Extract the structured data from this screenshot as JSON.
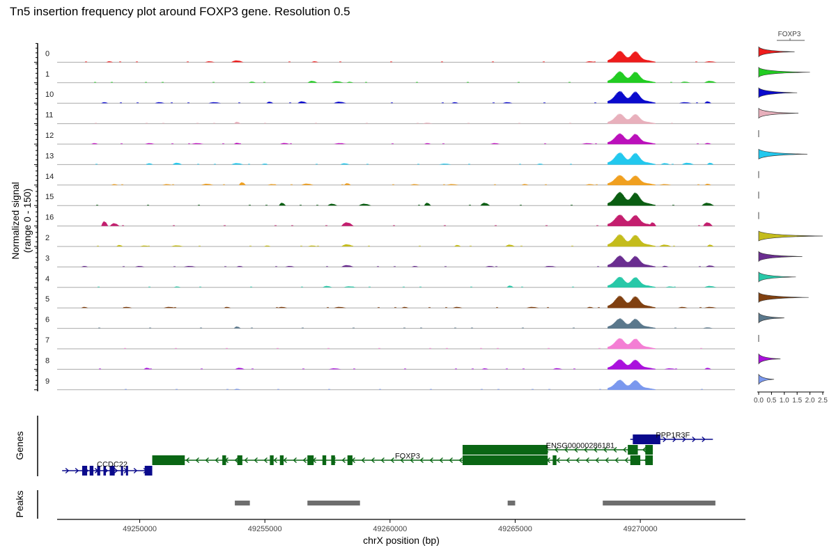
{
  "title": "Tn5 insertion frequency plot around FOXP3 gene. Resolution 0.5",
  "chart_data": {
    "type": "area",
    "title": "Tn5 insertion frequency plot around FOXP3 gene. Resolution 0.5",
    "ylabel_line1": "Normalized signal",
    "ylabel_line2": "(range 0 - 150)",
    "xlabel": "chrX position (bp)",
    "xlim": [
      49246700,
      49274200
    ],
    "xticks": [
      49250000,
      49255000,
      49260000,
      49265000,
      49270000
    ],
    "xtick_labels": [
      "49250000",
      "49255000",
      "49260000",
      "49265000",
      "49270000"
    ],
    "ylim": [
      0,
      150
    ],
    "main_peak": {
      "start": 49268700,
      "end": 49270600,
      "centers": [
        49269200,
        49269800
      ]
    },
    "tracks": [
      {
        "name": "0",
        "color": "#ee1c1c",
        "peak": 0.8,
        "bg": [
          [
            49248800,
            0.04
          ],
          [
            49252800,
            0.05
          ],
          [
            49253900,
            0.1
          ],
          [
            49257000,
            0.04
          ],
          [
            49268000,
            0.04
          ],
          [
            49272800,
            0.05
          ]
        ]
      },
      {
        "name": "1",
        "color": "#22cc22",
        "peak": 0.8,
        "bg": [
          [
            49254500,
            0.06
          ],
          [
            49256900,
            0.1
          ],
          [
            49257900,
            0.08
          ],
          [
            49258400,
            0.05
          ],
          [
            49271800,
            0.06
          ],
          [
            49272800,
            0.1
          ]
        ]
      },
      {
        "name": "10",
        "color": "#0a0acd",
        "peak": 0.85,
        "bg": [
          [
            49248600,
            0.04
          ],
          [
            49250800,
            0.05
          ],
          [
            49253000,
            0.05
          ],
          [
            49255200,
            0.08
          ],
          [
            49256500,
            0.1
          ],
          [
            49258000,
            0.08
          ],
          [
            49262600,
            0.05
          ],
          [
            49264700,
            0.04
          ],
          [
            49271800,
            0.05
          ],
          [
            49272700,
            0.1
          ]
        ]
      },
      {
        "name": "11",
        "color": "#e8b0bc",
        "peak": 0.7,
        "bg": [
          [
            49253900,
            0.1
          ],
          [
            49261500,
            0.03
          ]
        ]
      },
      {
        "name": "12",
        "color": "#bb10bb",
        "peak": 0.75,
        "bg": [
          [
            49248200,
            0.04
          ],
          [
            49250400,
            0.05
          ],
          [
            49252300,
            0.04
          ],
          [
            49253900,
            0.07
          ],
          [
            49255800,
            0.06
          ],
          [
            49258000,
            0.05
          ],
          [
            49261500,
            0.04
          ],
          [
            49264200,
            0.05
          ],
          [
            49267900,
            0.05
          ],
          [
            49272700,
            0.06
          ]
        ]
      },
      {
        "name": "13",
        "color": "#22c8ee",
        "peak": 0.85,
        "bg": [
          [
            49250400,
            0.07
          ],
          [
            49251500,
            0.1
          ],
          [
            49253900,
            0.08
          ],
          [
            49255000,
            0.05
          ],
          [
            49258200,
            0.07
          ],
          [
            49262200,
            0.05
          ],
          [
            49266000,
            0.05
          ],
          [
            49271000,
            0.08
          ],
          [
            49271900,
            0.1
          ],
          [
            49272800,
            0.1
          ]
        ]
      },
      {
        "name": "14",
        "color": "#f0a020",
        "peak": 0.7,
        "bg": [
          [
            49249000,
            0.03
          ],
          [
            49251100,
            0.05
          ],
          [
            49252700,
            0.07
          ],
          [
            49254100,
            0.15
          ],
          [
            49255300,
            0.05
          ],
          [
            49256700,
            0.08
          ],
          [
            49258300,
            0.1
          ],
          [
            49261000,
            0.05
          ],
          [
            49262500,
            0.04
          ],
          [
            49265400,
            0.06
          ],
          [
            49268000,
            0.05
          ],
          [
            49271000,
            0.05
          ],
          [
            49272700,
            0.07
          ]
        ]
      },
      {
        "name": "15",
        "color": "#0a5e12",
        "peak": 0.95,
        "bg": [
          [
            49255700,
            0.15
          ],
          [
            49257700,
            0.1
          ],
          [
            49259000,
            0.1
          ],
          [
            49261500,
            0.15
          ],
          [
            49263800,
            0.15
          ],
          [
            49272700,
            0.15
          ]
        ]
      },
      {
        "name": "16",
        "color": "#c41e6e",
        "peak": 0.8,
        "bg": [
          [
            49248600,
            0.25
          ],
          [
            49249000,
            0.15
          ],
          [
            49258300,
            0.2
          ],
          [
            49270500,
            0.2
          ],
          [
            49272700,
            0.2
          ]
        ]
      },
      {
        "name": "2",
        "color": "#c4bc1c",
        "peak": 0.85,
        "bg": [
          [
            49249200,
            0.08
          ],
          [
            49250200,
            0.05
          ],
          [
            49251500,
            0.06
          ],
          [
            49255100,
            0.05
          ],
          [
            49256900,
            0.05
          ],
          [
            49258300,
            0.12
          ],
          [
            49262700,
            0.08
          ],
          [
            49264800,
            0.1
          ],
          [
            49271000,
            0.1
          ],
          [
            49272800,
            0.1
          ]
        ]
      },
      {
        "name": "3",
        "color": "#6a2d90",
        "peak": 0.8,
        "bg": [
          [
            49247800,
            0.05
          ],
          [
            49250000,
            0.05
          ],
          [
            49252000,
            0.04
          ],
          [
            49254000,
            0.05
          ],
          [
            49256000,
            0.05
          ],
          [
            49258300,
            0.1
          ],
          [
            49261000,
            0.05
          ],
          [
            49264000,
            0.05
          ],
          [
            49266400,
            0.05
          ],
          [
            49271000,
            0.06
          ],
          [
            49272800,
            0.08
          ]
        ]
      },
      {
        "name": "4",
        "color": "#28c8a8",
        "peak": 0.75,
        "bg": [
          [
            49251500,
            0.05
          ],
          [
            49257500,
            0.08
          ],
          [
            49258400,
            0.06
          ],
          [
            49264800,
            0.1
          ],
          [
            49271200,
            0.04
          ],
          [
            49272800,
            0.08
          ]
        ]
      },
      {
        "name": "5",
        "color": "#804010",
        "peak": 0.85,
        "bg": [
          [
            49247800,
            0.03
          ],
          [
            49249500,
            0.04
          ],
          [
            49251200,
            0.03
          ],
          [
            49253500,
            0.04
          ],
          [
            49255700,
            0.04
          ],
          [
            49258000,
            0.04
          ],
          [
            49260600,
            0.03
          ],
          [
            49262700,
            0.04
          ],
          [
            49265700,
            0.03
          ],
          [
            49268000,
            0.03
          ],
          [
            49271700,
            0.04
          ],
          [
            49272800,
            0.05
          ]
        ]
      },
      {
        "name": "6",
        "color": "#5a788c",
        "peak": 0.7,
        "bg": [
          [
            49253900,
            0.1
          ],
          [
            49272700,
            0.05
          ]
        ]
      },
      {
        "name": "7",
        "color": "#f47ed4",
        "peak": 0.75,
        "bg": []
      },
      {
        "name": "8",
        "color": "#aa10dd",
        "peak": 0.7,
        "bg": [
          [
            49250300,
            0.08
          ],
          [
            49254000,
            0.08
          ],
          [
            49257800,
            0.05
          ],
          [
            49263800,
            0.05
          ],
          [
            49266700,
            0.06
          ],
          [
            49271200,
            0.04
          ],
          [
            49272700,
            0.08
          ]
        ]
      },
      {
        "name": "9",
        "color": "#7a98ee",
        "peak": 0.7,
        "bg": [
          [
            49253900,
            0.04
          ]
        ]
      }
    ],
    "violin": {
      "title": "FOXP3",
      "xlim": [
        0,
        2.5
      ],
      "xticks": [
        0,
        0.5,
        1.0,
        1.5,
        2.0,
        2.5
      ],
      "xtick_labels": [
        "0.0",
        "0.5",
        "1.0",
        "1.5",
        "2.0",
        "2.5"
      ],
      "max_values": [
        1.4,
        2.0,
        1.5,
        1.55,
        0.0,
        1.9,
        0.0,
        0.0,
        0.0,
        2.5,
        1.7,
        1.45,
        1.95,
        1.0,
        0.0,
        0.85,
        0.6
      ],
      "bulb": [
        0.05,
        0.05,
        0.08,
        0.05,
        0.0,
        0.15,
        0.0,
        0.0,
        0.0,
        0.2,
        0.05,
        0.06,
        0.06,
        0.04,
        0.0,
        0.04,
        0.03
      ]
    },
    "genes_label": "Genes",
    "peaks_label": "Peaks",
    "genes": [
      {
        "name": "CCDC22",
        "color": "#0a0a8c",
        "strand": "+",
        "start": 49246900,
        "end": 49250500,
        "row": 2,
        "exons": [
          [
            49247700,
            49247900
          ],
          [
            49248000,
            49248150
          ],
          [
            49248300,
            49248420
          ],
          [
            49248550,
            49248650
          ],
          [
            49248800,
            49249000
          ],
          [
            49249250,
            49249330
          ],
          [
            49249450,
            49249520
          ],
          [
            49250200,
            49250500
          ]
        ],
        "label_x": 49248900,
        "label_row": 1.35
      },
      {
        "name": "FOXP3",
        "color": "#0a6614",
        "strand": "-",
        "start": 49250500,
        "end": 49270500,
        "row": 1,
        "exons": [
          [
            49250500,
            49251800
          ],
          [
            49253300,
            49253450
          ],
          [
            49253900,
            49254100
          ],
          [
            49255200,
            49255350
          ],
          [
            49255600,
            49255750
          ],
          [
            49256700,
            49256950
          ],
          [
            49257300,
            49257450
          ],
          [
            49257650,
            49257800
          ],
          [
            49258300,
            49258500
          ],
          [
            49262900,
            49266300
          ],
          [
            49265500,
            49265650
          ],
          [
            49266500,
            49266650
          ],
          [
            49269600,
            49270000
          ],
          [
            49270200,
            49270500
          ]
        ],
        "label_x": 49260700,
        "label_row": 0.55
      },
      {
        "name": "ENSG00000286181",
        "color": "#0a6614",
        "strand": "-",
        "start": 49262900,
        "end": 49270500,
        "row": 0,
        "exons": [
          [
            49262900,
            49266300
          ],
          [
            49269500,
            49269900
          ],
          [
            49270200,
            49270500
          ]
        ],
        "label_x": 49267600,
        "label_row": -0.45
      },
      {
        "name": "PPP1R3F",
        "color": "#0a0a8c",
        "strand": "+",
        "start": 49269600,
        "end": 49272900,
        "row": -1,
        "exons": [
          [
            49269700,
            49270800
          ]
        ],
        "label_x": 49271300,
        "label_row": -1.45
      }
    ],
    "peaks": [
      [
        49253800,
        49254400
      ],
      [
        49256700,
        49258800
      ],
      [
        49264700,
        49265000
      ],
      [
        49268500,
        49273000
      ]
    ]
  }
}
